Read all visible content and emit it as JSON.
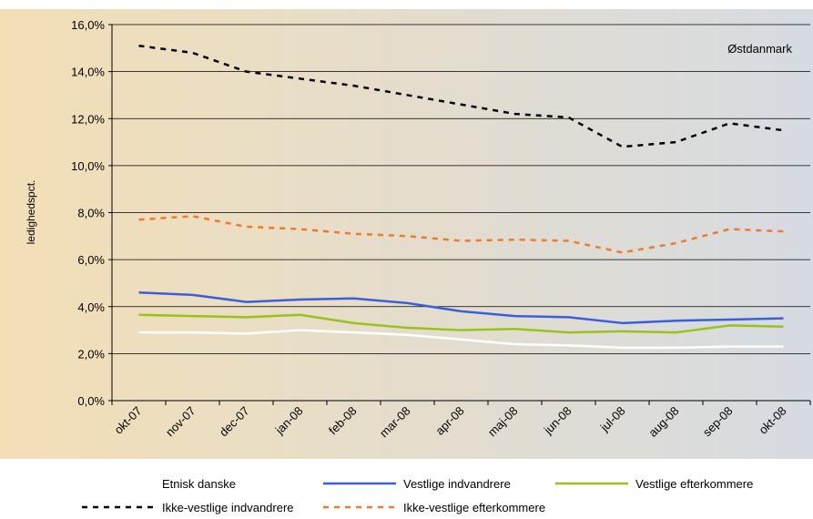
{
  "chart_data": {
    "type": "line",
    "y_label": "ledighedspct.",
    "annotation": "Østdanmark",
    "categories": [
      "okt-07",
      "nov-07",
      "dec-07",
      "jan-08",
      "feb-08",
      "mar-08",
      "apr-08",
      "maj-08",
      "jun-08",
      "jul-08",
      "aug-08",
      "sep-08",
      "okt-08"
    ],
    "ylim": [
      0,
      16
    ],
    "yticks": [
      {
        "value": 0,
        "label": "0,0%"
      },
      {
        "value": 2,
        "label": "2,0%"
      },
      {
        "value": 4,
        "label": "4,0%"
      },
      {
        "value": 6,
        "label": "6,0%"
      },
      {
        "value": 8,
        "label": "8,0%"
      },
      {
        "value": 10,
        "label": "10,0%"
      },
      {
        "value": 12,
        "label": "12,0%"
      },
      {
        "value": 14,
        "label": "14,0%"
      },
      {
        "value": 16,
        "label": "16,0%"
      }
    ],
    "grid": true,
    "series": [
      {
        "name": "Etnisk danske",
        "color": "#ffffff",
        "dash": false,
        "values": [
          2.9,
          2.9,
          2.85,
          3.0,
          2.9,
          2.8,
          2.6,
          2.4,
          2.35,
          2.25,
          2.25,
          2.3,
          2.3
        ]
      },
      {
        "name": "Vestlige indvandrere",
        "color": "#3a5fd8",
        "dash": false,
        "values": [
          4.6,
          4.5,
          4.2,
          4.3,
          4.35,
          4.15,
          3.8,
          3.6,
          3.55,
          3.3,
          3.4,
          3.45,
          3.5
        ]
      },
      {
        "name": "Vestlige efterkommere",
        "color": "#99c31c",
        "dash": false,
        "values": [
          3.65,
          3.6,
          3.55,
          3.65,
          3.3,
          3.1,
          3.0,
          3.05,
          2.9,
          2.95,
          2.9,
          3.2,
          3.15
        ]
      },
      {
        "name": "Ikke-vestlige indvandrere",
        "color": "#000000",
        "dash": true,
        "values": [
          15.1,
          14.8,
          14.0,
          13.7,
          13.4,
          13.0,
          12.6,
          12.2,
          12.05,
          10.8,
          11.0,
          11.8,
          11.5
        ]
      },
      {
        "name": "Ikke-vestlige efterkommere",
        "color": "#f07a2a",
        "dash": true,
        "values": [
          7.7,
          7.85,
          7.4,
          7.3,
          7.1,
          7.0,
          6.8,
          6.85,
          6.8,
          6.3,
          6.7,
          7.3,
          7.2
        ]
      }
    ]
  }
}
